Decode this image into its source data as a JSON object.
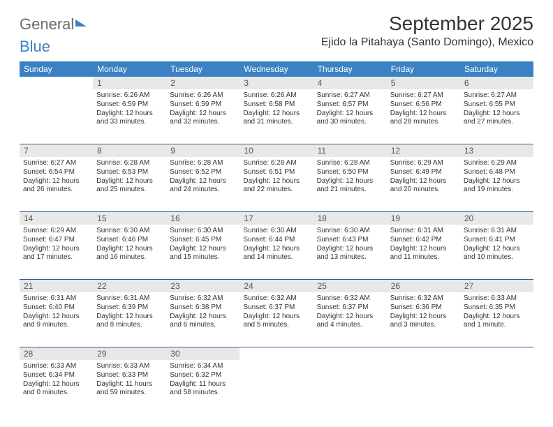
{
  "brand": {
    "part1": "General",
    "part2": "Blue"
  },
  "title": "September 2025",
  "location": "Ejido la Pitahaya (Santo Domingo), Mexico",
  "colors": {
    "header_bg": "#3b82c4",
    "header_text": "#ffffff",
    "daynum_bg": "#e8e8e8",
    "rule": "#2f5f8f",
    "text": "#333333",
    "logo_gray": "#6b6b6b"
  },
  "weekdays": [
    "Sunday",
    "Monday",
    "Tuesday",
    "Wednesday",
    "Thursday",
    "Friday",
    "Saturday"
  ],
  "weeks": [
    {
      "nums": [
        "",
        "1",
        "2",
        "3",
        "4",
        "5",
        "6"
      ],
      "cells": [
        null,
        {
          "sunrise": "Sunrise: 6:26 AM",
          "sunset": "Sunset: 6:59 PM",
          "daylight": "Daylight: 12 hours and 33 minutes."
        },
        {
          "sunrise": "Sunrise: 6:26 AM",
          "sunset": "Sunset: 6:59 PM",
          "daylight": "Daylight: 12 hours and 32 minutes."
        },
        {
          "sunrise": "Sunrise: 6:26 AM",
          "sunset": "Sunset: 6:58 PM",
          "daylight": "Daylight: 12 hours and 31 minutes."
        },
        {
          "sunrise": "Sunrise: 6:27 AM",
          "sunset": "Sunset: 6:57 PM",
          "daylight": "Daylight: 12 hours and 30 minutes."
        },
        {
          "sunrise": "Sunrise: 6:27 AM",
          "sunset": "Sunset: 6:56 PM",
          "daylight": "Daylight: 12 hours and 28 minutes."
        },
        {
          "sunrise": "Sunrise: 6:27 AM",
          "sunset": "Sunset: 6:55 PM",
          "daylight": "Daylight: 12 hours and 27 minutes."
        }
      ]
    },
    {
      "nums": [
        "7",
        "8",
        "9",
        "10",
        "11",
        "12",
        "13"
      ],
      "cells": [
        {
          "sunrise": "Sunrise: 6:27 AM",
          "sunset": "Sunset: 6:54 PM",
          "daylight": "Daylight: 12 hours and 26 minutes."
        },
        {
          "sunrise": "Sunrise: 6:28 AM",
          "sunset": "Sunset: 6:53 PM",
          "daylight": "Daylight: 12 hours and 25 minutes."
        },
        {
          "sunrise": "Sunrise: 6:28 AM",
          "sunset": "Sunset: 6:52 PM",
          "daylight": "Daylight: 12 hours and 24 minutes."
        },
        {
          "sunrise": "Sunrise: 6:28 AM",
          "sunset": "Sunset: 6:51 PM",
          "daylight": "Daylight: 12 hours and 22 minutes."
        },
        {
          "sunrise": "Sunrise: 6:28 AM",
          "sunset": "Sunset: 6:50 PM",
          "daylight": "Daylight: 12 hours and 21 minutes."
        },
        {
          "sunrise": "Sunrise: 6:29 AM",
          "sunset": "Sunset: 6:49 PM",
          "daylight": "Daylight: 12 hours and 20 minutes."
        },
        {
          "sunrise": "Sunrise: 6:29 AM",
          "sunset": "Sunset: 6:48 PM",
          "daylight": "Daylight: 12 hours and 19 minutes."
        }
      ]
    },
    {
      "nums": [
        "14",
        "15",
        "16",
        "17",
        "18",
        "19",
        "20"
      ],
      "cells": [
        {
          "sunrise": "Sunrise: 6:29 AM",
          "sunset": "Sunset: 6:47 PM",
          "daylight": "Daylight: 12 hours and 17 minutes."
        },
        {
          "sunrise": "Sunrise: 6:30 AM",
          "sunset": "Sunset: 6:46 PM",
          "daylight": "Daylight: 12 hours and 16 minutes."
        },
        {
          "sunrise": "Sunrise: 6:30 AM",
          "sunset": "Sunset: 6:45 PM",
          "daylight": "Daylight: 12 hours and 15 minutes."
        },
        {
          "sunrise": "Sunrise: 6:30 AM",
          "sunset": "Sunset: 6:44 PM",
          "daylight": "Daylight: 12 hours and 14 minutes."
        },
        {
          "sunrise": "Sunrise: 6:30 AM",
          "sunset": "Sunset: 6:43 PM",
          "daylight": "Daylight: 12 hours and 13 minutes."
        },
        {
          "sunrise": "Sunrise: 6:31 AM",
          "sunset": "Sunset: 6:42 PM",
          "daylight": "Daylight: 12 hours and 11 minutes."
        },
        {
          "sunrise": "Sunrise: 6:31 AM",
          "sunset": "Sunset: 6:41 PM",
          "daylight": "Daylight: 12 hours and 10 minutes."
        }
      ]
    },
    {
      "nums": [
        "21",
        "22",
        "23",
        "24",
        "25",
        "26",
        "27"
      ],
      "cells": [
        {
          "sunrise": "Sunrise: 6:31 AM",
          "sunset": "Sunset: 6:40 PM",
          "daylight": "Daylight: 12 hours and 9 minutes."
        },
        {
          "sunrise": "Sunrise: 6:31 AM",
          "sunset": "Sunset: 6:39 PM",
          "daylight": "Daylight: 12 hours and 8 minutes."
        },
        {
          "sunrise": "Sunrise: 6:32 AM",
          "sunset": "Sunset: 6:38 PM",
          "daylight": "Daylight: 12 hours and 6 minutes."
        },
        {
          "sunrise": "Sunrise: 6:32 AM",
          "sunset": "Sunset: 6:37 PM",
          "daylight": "Daylight: 12 hours and 5 minutes."
        },
        {
          "sunrise": "Sunrise: 6:32 AM",
          "sunset": "Sunset: 6:37 PM",
          "daylight": "Daylight: 12 hours and 4 minutes."
        },
        {
          "sunrise": "Sunrise: 6:32 AM",
          "sunset": "Sunset: 6:36 PM",
          "daylight": "Daylight: 12 hours and 3 minutes."
        },
        {
          "sunrise": "Sunrise: 6:33 AM",
          "sunset": "Sunset: 6:35 PM",
          "daylight": "Daylight: 12 hours and 1 minute."
        }
      ]
    },
    {
      "nums": [
        "28",
        "29",
        "30",
        "",
        "",
        "",
        ""
      ],
      "cells": [
        {
          "sunrise": "Sunrise: 6:33 AM",
          "sunset": "Sunset: 6:34 PM",
          "daylight": "Daylight: 12 hours and 0 minutes."
        },
        {
          "sunrise": "Sunrise: 6:33 AM",
          "sunset": "Sunset: 6:33 PM",
          "daylight": "Daylight: 11 hours and 59 minutes."
        },
        {
          "sunrise": "Sunrise: 6:34 AM",
          "sunset": "Sunset: 6:32 PM",
          "daylight": "Daylight: 11 hours and 58 minutes."
        },
        null,
        null,
        null,
        null
      ]
    }
  ]
}
